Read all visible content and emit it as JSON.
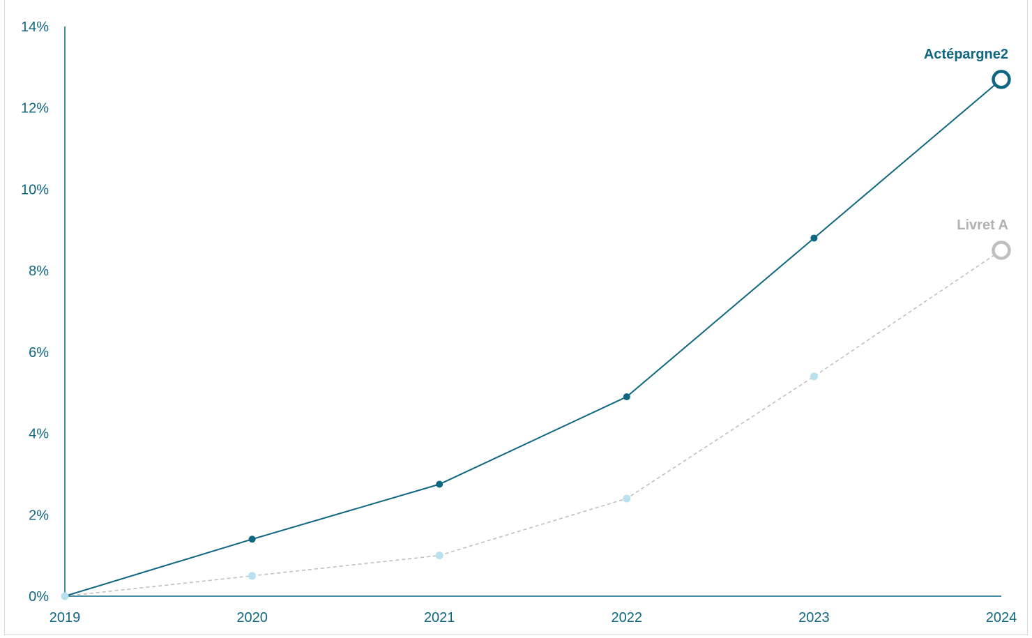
{
  "colors": {
    "axis": "#0f6680",
    "tick_text": "#0f6680",
    "primary_series": "#0f6680",
    "secondary_line": "#bfbfbf",
    "secondary_points": "#b8e0ef",
    "secondary_label": "#b0b0b0"
  },
  "chart_data": {
    "type": "line",
    "x": [
      "2019",
      "2020",
      "2021",
      "2022",
      "2023",
      "2024"
    ],
    "ylim": [
      0,
      14
    ],
    "y_ticks": [
      "0%",
      "2%",
      "4%",
      "6%",
      "8%",
      "10%",
      "12%",
      "14%"
    ],
    "y_tick_values": [
      0,
      2,
      4,
      6,
      8,
      10,
      12,
      14
    ],
    "grid": false,
    "series": [
      {
        "name": "Actépargne2",
        "values": [
          0,
          1.4,
          2.75,
          4.9,
          8.8,
          12.7
        ],
        "style": "solid",
        "end_marker": "hollow-circle"
      },
      {
        "name": "Livret A",
        "values": [
          0,
          0.5,
          1.0,
          2.4,
          5.4,
          8.5
        ],
        "style": "dashed",
        "end_marker": "hollow-circle"
      }
    ]
  }
}
